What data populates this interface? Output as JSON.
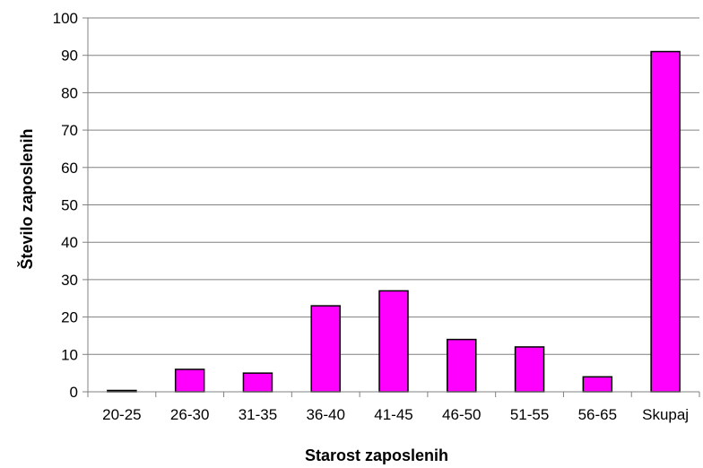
{
  "chart_data": {
    "type": "bar",
    "xlabel": "Starost zaposlenih",
    "ylabel": "Število zaposlenih",
    "categories": [
      "20-25",
      "26-30",
      "31-35",
      "36-40",
      "41-45",
      "46-50",
      "51-55",
      "56-65",
      "Skupaj"
    ],
    "values": [
      0,
      6,
      5,
      23,
      27,
      14,
      12,
      4,
      91
    ],
    "ylim": [
      0,
      100
    ],
    "yticks": [
      0,
      10,
      20,
      30,
      40,
      50,
      60,
      70,
      80,
      90,
      100
    ],
    "grid": true,
    "legend": "none",
    "colors": {
      "bar": "#ff00ff",
      "bar_outline": "#000000",
      "grid": "#808080"
    }
  }
}
